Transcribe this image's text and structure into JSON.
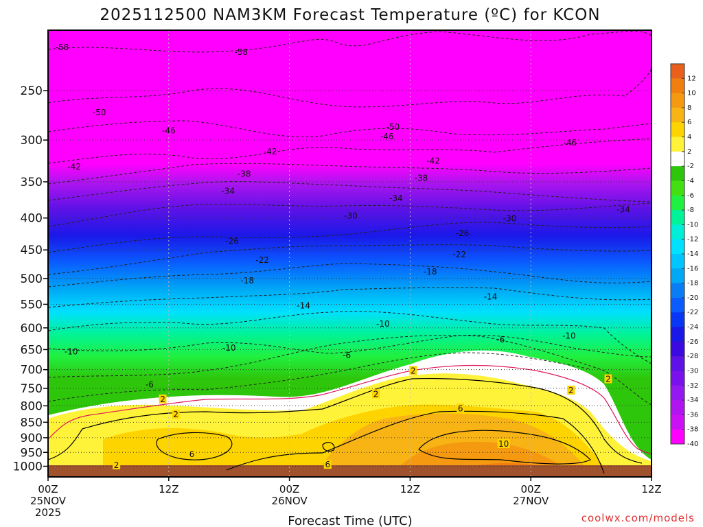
{
  "chart_data": {
    "type": "heatmap",
    "title": "2025112500 NAM3KM Forecast Temperature (ºC) for KCON",
    "xlabel": "Forecast Time (UTC)",
    "ylabel": "",
    "credit": "coolwx.com/models",
    "y_axis": {
      "unit": "hPa",
      "ticks": [
        250,
        300,
        350,
        400,
        450,
        500,
        550,
        600,
        650,
        700,
        750,
        800,
        850,
        900,
        950,
        1000
      ],
      "range": [
        200,
        1040
      ],
      "log_pressure": true
    },
    "x_axis": {
      "unit": "forecast hour",
      "range": [
        0,
        60
      ],
      "ticks": [
        {
          "hour": 0,
          "label": "00Z",
          "sub": "25NOV",
          "sub2": "2025"
        },
        {
          "hour": 12,
          "label": "12Z",
          "sub": "",
          "sub2": ""
        },
        {
          "hour": 24,
          "label": "00Z",
          "sub": "26NOV",
          "sub2": ""
        },
        {
          "hour": 36,
          "label": "12Z",
          "sub": "",
          "sub2": ""
        },
        {
          "hour": 48,
          "label": "00Z",
          "sub": "27NOV",
          "sub2": ""
        },
        {
          "hour": 60,
          "label": "12Z",
          "sub": "",
          "sub2": ""
        }
      ]
    },
    "colorbar": {
      "labels": [
        "12",
        "10",
        "8",
        "6",
        "4",
        "2",
        "-2",
        "-4",
        "-6",
        "-8",
        "-10",
        "-12",
        "-14",
        "-16",
        "-18",
        "-20",
        "-22",
        "-24",
        "-26",
        "-28",
        "-30",
        "-32",
        "-34",
        "-36",
        "-38",
        "-40"
      ],
      "colors": [
        "#e8601c",
        "#f07f10",
        "#f59a10",
        "#f8b414",
        "#fdd400",
        "#fff33a",
        "#ffffff",
        "#2ec60b",
        "#42e010",
        "#20f040",
        "#00f398",
        "#00eed8",
        "#00e0ff",
        "#00c5ff",
        "#00a8f5",
        "#0a7df5",
        "#0a5cff",
        "#0836f5",
        "#1a18e8",
        "#3c0ae0",
        "#5e12e6",
        "#7a10ec",
        "#9418f0",
        "#b014f0",
        "#cc10f4",
        "#ff00ff"
      ]
    },
    "isotherm_labels": [
      {
        "text": "-58",
        "hour": 1.4,
        "p": 213
      },
      {
        "text": "-58",
        "hour": 19.2,
        "p": 217
      },
      {
        "text": "-50",
        "hour": 5.1,
        "p": 271
      },
      {
        "text": "-50",
        "hour": 34.3,
        "p": 286
      },
      {
        "text": "-46",
        "hour": 12.0,
        "p": 290
      },
      {
        "text": "-46",
        "hour": 33.7,
        "p": 296
      },
      {
        "text": "-46",
        "hour": 51.9,
        "p": 303
      },
      {
        "text": "-42",
        "hour": 2.6,
        "p": 331
      },
      {
        "text": "-42",
        "hour": 22.1,
        "p": 313
      },
      {
        "text": "-42",
        "hour": 38.3,
        "p": 324
      },
      {
        "text": "-38",
        "hour": 19.5,
        "p": 340
      },
      {
        "text": "-38",
        "hour": 37.1,
        "p": 345
      },
      {
        "text": "-34",
        "hour": 17.9,
        "p": 362
      },
      {
        "text": "-34",
        "hour": 34.6,
        "p": 372
      },
      {
        "text": "-34",
        "hour": 57.2,
        "p": 388
      },
      {
        "text": "-30",
        "hour": 30.1,
        "p": 397
      },
      {
        "text": "-30",
        "hour": 45.9,
        "p": 401
      },
      {
        "text": "-26",
        "hour": 18.3,
        "p": 436
      },
      {
        "text": "-26",
        "hour": 41.2,
        "p": 423
      },
      {
        "text": "-22",
        "hour": 21.3,
        "p": 467
      },
      {
        "text": "-22",
        "hour": 40.9,
        "p": 458
      },
      {
        "text": "-18",
        "hour": 19.8,
        "p": 504
      },
      {
        "text": "-18",
        "hour": 38.0,
        "p": 488
      },
      {
        "text": "-14",
        "hour": 25.4,
        "p": 553
      },
      {
        "text": "-14",
        "hour": 44.0,
        "p": 535
      },
      {
        "text": "-10",
        "hour": 2.3,
        "p": 655
      },
      {
        "text": "-10",
        "hour": 18.0,
        "p": 646
      },
      {
        "text": "-10",
        "hour": 33.3,
        "p": 591
      },
      {
        "text": "-10",
        "hour": 51.8,
        "p": 618
      },
      {
        "text": "-6",
        "hour": 10.1,
        "p": 740
      },
      {
        "text": "-6",
        "hour": 29.7,
        "p": 664
      },
      {
        "text": "-6",
        "hour": 45.0,
        "p": 627
      },
      {
        "text": "2",
        "hour": 11.4,
        "p": 781
      },
      {
        "text": "2",
        "hour": 12.7,
        "p": 826
      },
      {
        "text": "2",
        "hour": 36.3,
        "p": 703
      },
      {
        "text": "2",
        "hour": 55.7,
        "p": 725
      },
      {
        "text": "2",
        "hour": 32.6,
        "p": 766
      },
      {
        "text": "2",
        "hour": 52.0,
        "p": 756
      },
      {
        "text": "2",
        "hour": 6.8,
        "p": 996
      },
      {
        "text": "6",
        "hour": 14.3,
        "p": 957
      },
      {
        "text": "6",
        "hour": 41.0,
        "p": 808
      },
      {
        "text": "6",
        "hour": 27.8,
        "p": 994
      },
      {
        "text": "10",
        "hour": 45.3,
        "p": 921
      }
    ]
  }
}
